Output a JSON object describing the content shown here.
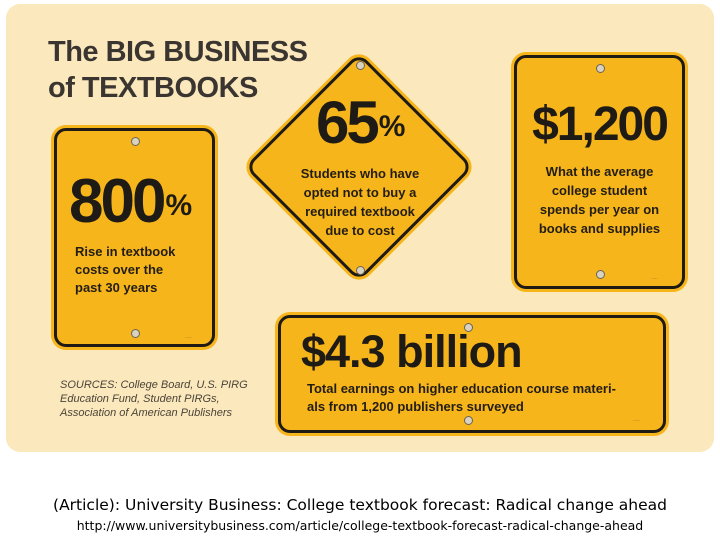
{
  "title": {
    "line1": "The BIG BUSINESS",
    "line2": "of TEXTBOOKS"
  },
  "signs": {
    "rise": {
      "number": "800",
      "suffix": "%",
      "caption": [
        "Rise in textbook",
        "costs over the",
        "past 30 years"
      ]
    },
    "opted_out": {
      "number": "65",
      "suffix": "%",
      "caption": [
        "Students who have",
        "opted not to buy a",
        "required textbook",
        "due to cost"
      ]
    },
    "spending": {
      "number": "$1,200",
      "caption": [
        "What the average",
        "college student",
        "spends per year on",
        "books and supplies"
      ]
    },
    "earnings": {
      "number": "$4.3 billion",
      "caption": [
        "Total earnings on higher education course materi-",
        "als from 1,200 publishers surveyed"
      ]
    }
  },
  "sources": [
    "SOURCES: College Board, U.S. PIRG",
    "Education Fund, Student PIRGs,",
    "Association of American Publishers"
  ],
  "colors": {
    "sign_yellow": "#f6b51a",
    "panel": "#fbe9bd",
    "ink": "#1e1a15"
  },
  "footer": {
    "citation": "(Article): University Business: College textbook forecast: Radical change ahead",
    "url": "http://www.universitybusiness.com/article/college-textbook-forecast-radical-change-ahead"
  }
}
